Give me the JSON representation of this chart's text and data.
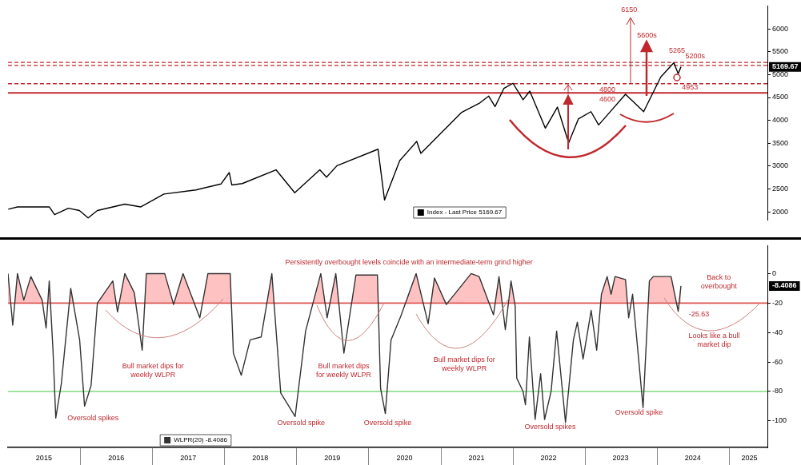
{
  "chart_data": [
    {
      "type": "line",
      "xlim": [
        "2015-01-01",
        "2025-07-15"
      ],
      "ylim": [
        1830,
        6500
      ],
      "yticks": [
        2000,
        2500,
        3000,
        3500,
        4000,
        4500,
        5000,
        5500,
        6000
      ],
      "tick_labels": "y",
      "grid": false,
      "legend": "bottom",
      "marker": "none",
      "line_style": "solid",
      "series": [
        {
          "name": "Index - Last Price 5169.67",
          "color": "#000000",
          "x": [
            "2015-01-02",
            "2015-02-18",
            "2015-07-29",
            "2015-08-25",
            "2015-11-03",
            "2015-12-29",
            "2016-02-11",
            "2016-03-29",
            "2016-08-15",
            "2016-11-04",
            "2017-03-01",
            "2017-08-10",
            "2017-12-15",
            "2018-01-26",
            "2018-02-08",
            "2018-04-02",
            "2018-09-20",
            "2018-12-24",
            "2019-04-30",
            "2019-06-03",
            "2019-07-26",
            "2020-02-19",
            "2020-03-23",
            "2020-06-08",
            "2020-09-02",
            "2020-09-23",
            "2021-04-16",
            "2021-07-15",
            "2021-09-02",
            "2021-10-04",
            "2021-11-18",
            "2022-01-03",
            "2022-02-23",
            "2022-03-29",
            "2022-06-16",
            "2022-08-16",
            "2022-10-12",
            "2022-11-30",
            "2023-02-02",
            "2023-03-13",
            "2023-07-27",
            "2023-10-27",
            "2024-01-22",
            "2024-03-28",
            "2024-04-19",
            "2024-05-03"
          ],
          "values": [
            2060,
            2110,
            2110,
            1940,
            2080,
            2030,
            1870,
            2030,
            2170,
            2110,
            2390,
            2480,
            2610,
            2860,
            2590,
            2620,
            2920,
            2420,
            2920,
            2760,
            3010,
            3370,
            2260,
            3120,
            3540,
            3280,
            4170,
            4370,
            4530,
            4300,
            4700,
            4810,
            4450,
            4640,
            3830,
            4290,
            3510,
            4030,
            4190,
            3900,
            4570,
            4190,
            4950,
            5260,
            5020,
            5169.67
          ]
        }
      ],
      "ref_lines": [
        {
          "axis": "y",
          "value": 4800,
          "label": "4800",
          "color": "#c0282d",
          "line_style": "dashed"
        },
        {
          "axis": "y",
          "value": 4600,
          "label": "4600",
          "color": "#c0282d",
          "line_style": "solid"
        },
        {
          "axis": "y",
          "value": 5265,
          "color": "#c0282d",
          "line_style": "dashed"
        },
        {
          "axis": "y",
          "value": 5200,
          "color": "#c0282d",
          "line_style": "dashed"
        }
      ],
      "annotations": [
        {
          "text": "6150",
          "x": "2023-08-15",
          "y": 4800
        },
        {
          "text": "5600s",
          "x": "2023-11-05",
          "y": 5650
        },
        "5265",
        "5200s",
        "4953",
        "5169.67"
      ]
    },
    {
      "type": "line",
      "xlim": [
        "2015-01-01",
        "2025-07-15"
      ],
      "ylim": [
        -118,
        19
      ],
      "yticks": [
        0,
        -20,
        -40,
        -60,
        -80,
        -100
      ],
      "xticks": [
        {
          "value": "2015-07-02",
          "label": "2015"
        },
        {
          "value": "2016-07-02",
          "label": "2016"
        },
        {
          "value": "2017-07-02",
          "label": "2017"
        },
        {
          "value": "2018-07-02",
          "label": "2018"
        },
        {
          "value": "2019-07-02",
          "label": "2019"
        },
        {
          "value": "2020-07-02",
          "label": "2020"
        },
        {
          "value": "2021-07-02",
          "label": "2021"
        },
        {
          "value": "2022-07-02",
          "label": "2022"
        },
        {
          "value": "2023-07-02",
          "label": "2023"
        },
        {
          "value": "2024-07-02",
          "label": "2024"
        },
        {
          "value": "2025-04-15",
          "label": "2025"
        }
      ],
      "grid": false,
      "legend": "bottom",
      "marker": "none",
      "line_style": "solid",
      "series": [
        {
          "name": "WLPR(20) -8.4086",
          "color": "#333333",
          "x": [
            "2015-01-01",
            "2015-01-25",
            "2015-02-18",
            "2015-03-22",
            "2015-04-27",
            "2015-06-23",
            "2015-07-13",
            "2015-07-29",
            "2015-08-17",
            "2015-08-31",
            "2015-09-28",
            "2015-11-15",
            "2015-12-30",
            "2016-01-24",
            "2016-02-26",
            "2016-03-29",
            "2016-06-15",
            "2016-07-09",
            "2016-08-15",
            "2016-10-02",
            "2016-11-11",
            "2016-12-02",
            "2017-03-05",
            "2017-04-19",
            "2017-06-06",
            "2017-08-30",
            "2017-10-10",
            "2018-01-31",
            "2018-02-16",
            "2018-03-28",
            "2018-05-12",
            "2018-07-07",
            "2018-08-30",
            "2018-10-14",
            "2018-12-26",
            "2019-02-17",
            "2019-05-05",
            "2019-06-06",
            "2019-07-20",
            "2019-08-30",
            "2019-10-30",
            "2020-02-16",
            "2020-03-03",
            "2020-03-27",
            "2020-04-25",
            "2020-06-13",
            "2020-08-30",
            "2020-10-30",
            "2020-12-01",
            "2021-01-30",
            "2021-06-05",
            "2021-07-15",
            "2021-09-26",
            "2021-10-24",
            "2021-11-25",
            "2021-12-24",
            "2022-01-14",
            "2022-01-22",
            "2022-02-23",
            "2022-03-07",
            "2022-03-27",
            "2022-04-25",
            "2022-05-23",
            "2022-06-12",
            "2022-07-15",
            "2022-08-12",
            "2022-09-26",
            "2022-11-05",
            "2022-11-25",
            "2022-12-24",
            "2023-02-03",
            "2023-03-03",
            "2023-03-27",
            "2023-04-25",
            "2023-05-15",
            "2023-06-04",
            "2023-07-27",
            "2023-08-12",
            "2023-09-01",
            "2023-09-26",
            "2023-10-24",
            "2023-11-25",
            "2023-12-15",
            "2024-01-21",
            "2024-03-14",
            "2024-04-19",
            "2024-05-03"
          ],
          "values": [
            0,
            -35,
            0,
            -18,
            -2,
            -18,
            -37,
            -5,
            -52,
            -98,
            -75,
            -10,
            -45,
            -90,
            -76,
            -20,
            -5,
            -26,
            0,
            -13,
            -52,
            0,
            0,
            -21,
            0,
            -30,
            0,
            0,
            -54,
            -69,
            -45,
            -43,
            0,
            -81,
            -97,
            -39,
            0,
            -30,
            0,
            -54,
            -1,
            -1,
            -78,
            -95,
            -45,
            -29,
            0,
            -34,
            -3,
            -21,
            0,
            -2,
            -28,
            -2,
            -38,
            -5,
            -22,
            -71,
            -80,
            -89,
            -43,
            -99,
            -68,
            -99,
            -80,
            -39,
            -101,
            -45,
            -33,
            -58,
            -25,
            -52,
            -14,
            -2,
            -14,
            -2,
            -4,
            -30,
            -14,
            -50,
            -91,
            -5,
            -2,
            -2,
            -2,
            -25.63,
            -8.4086
          ]
        }
      ],
      "ref_lines": [
        {
          "axis": "y",
          "value": -20,
          "color": "#d9534f",
          "line_style": "solid"
        },
        {
          "axis": "y",
          "value": -80,
          "color": "#90e090",
          "line_style": "solid"
        }
      ],
      "annotations": [
        "Persistently overbought levels coincide with an intermediate-term grind higher",
        "Bull market dips for\nweekly WLPR",
        "Bull market dips\nfor weekly WLPR",
        "Bull market dips for\nweekly WLPR",
        "Oversold spikes",
        "Oversold spike",
        "Oversold spike",
        "Oversold spikes",
        "Oversold spike",
        "Back to\noverbought",
        {
          "text": "-25.63",
          "x": "2024-04-19",
          "y": -25.63
        },
        "Looks like a bull\nmarket dip",
        "-8.4086"
      ]
    }
  ]
}
